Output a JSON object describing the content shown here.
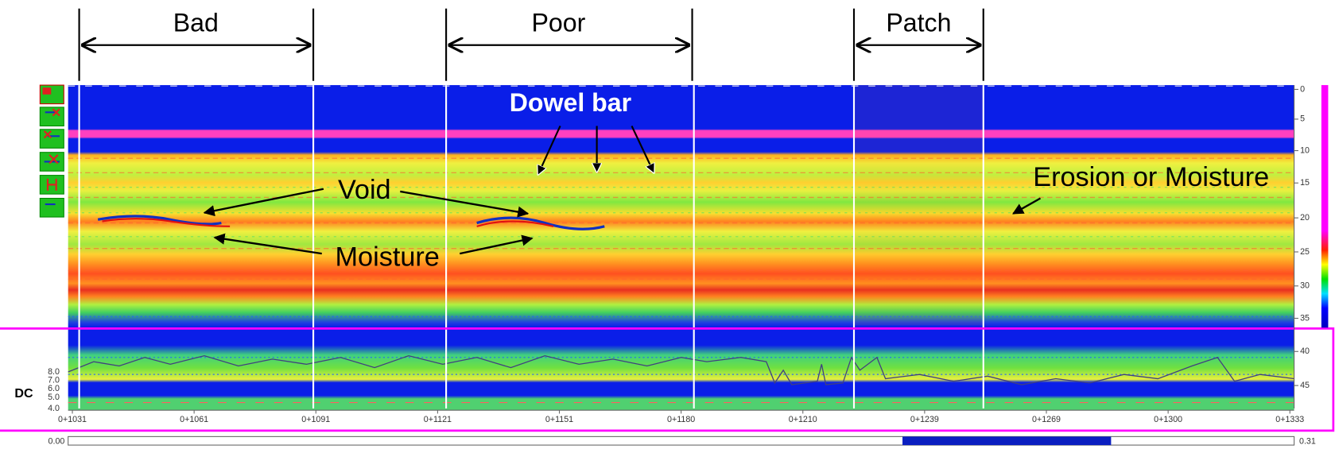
{
  "sections": [
    "Bad",
    "Poor",
    "Patch"
  ],
  "annotations": [
    "Dowel bar",
    "Void",
    "Moisture",
    "Erosion or Moisture"
  ],
  "depth_ticks": [
    "0",
    "5",
    "10",
    "15",
    "20",
    "25",
    "30",
    "35",
    "40",
    "45"
  ],
  "distance_ticks": [
    "0+1031",
    "0+1061",
    "0+1091",
    "0+1121",
    "0+1151",
    "0+1180",
    "0+1210",
    "0+1239",
    "0+1269",
    "0+1300",
    "0+1333"
  ],
  "dc_label": "DC",
  "dc_ticks": [
    "8.0",
    "7.0",
    "6.0",
    "5.0",
    "4.0"
  ],
  "scrollbar": {
    "start": "0.00",
    "end": "0.31"
  }
}
